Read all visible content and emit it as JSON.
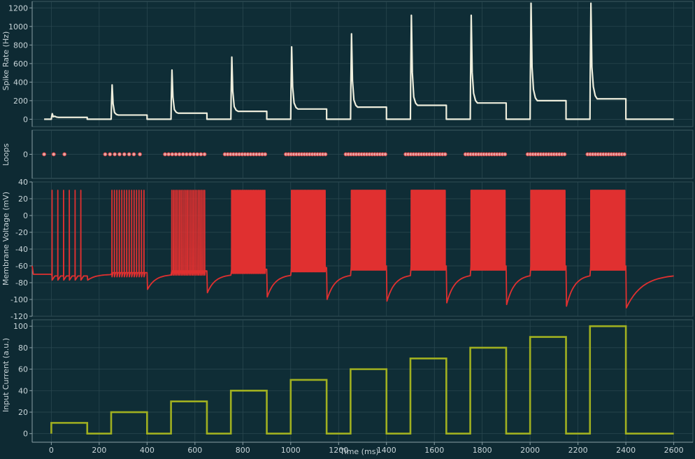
{
  "colors": {
    "background": "#0e2a33",
    "panel": "#0f2d36",
    "grid": "#2c4a52",
    "axis": "#8aa0a6",
    "text": "#c8d4d8",
    "rate": "#eeeedd",
    "loops_fill": "#e8a8a8",
    "loops_stroke": "#d84040",
    "voltage": "#e03030",
    "current": "#a0b020"
  },
  "chart_data": [
    {
      "type": "line",
      "panel": "spike-rate",
      "ylabel": "Spike Rate (Hz)",
      "xlim": [
        -80,
        2680
      ],
      "ylim": [
        -80,
        1270
      ],
      "yticks": [
        0,
        200,
        400,
        600,
        800,
        1000,
        1200
      ],
      "grid": true,
      "pulses": [
        {
          "start": 0,
          "end": 150,
          "peak": 60,
          "steady": 20
        },
        {
          "start": 250,
          "end": 400,
          "peak": 370,
          "steady": 45
        },
        {
          "start": 500,
          "end": 650,
          "peak": 530,
          "steady": 65
        },
        {
          "start": 750,
          "end": 900,
          "peak": 670,
          "steady": 85
        },
        {
          "start": 1000,
          "end": 1150,
          "peak": 780,
          "steady": 110
        },
        {
          "start": 1250,
          "end": 1400,
          "peak": 920,
          "steady": 130
        },
        {
          "start": 1500,
          "end": 1650,
          "peak": 1120,
          "steady": 150
        },
        {
          "start": 1750,
          "end": 1900,
          "peak": 1120,
          "steady": 175
        },
        {
          "start": 2000,
          "end": 2150,
          "peak": 1250,
          "steady": 200
        },
        {
          "start": 2250,
          "end": 2400,
          "peak": 1250,
          "steady": 220
        }
      ],
      "end_x": 2600
    },
    {
      "type": "scatter",
      "panel": "loops",
      "ylabel": "Loops",
      "xlim": [
        -80,
        2680
      ],
      "ylim": [
        -1,
        1
      ],
      "yticks": [
        0
      ],
      "grid": true,
      "points_x": [
        -30,
        10,
        55,
        225,
        245,
        265,
        285,
        305,
        325,
        345,
        370,
        475,
        490,
        505,
        520,
        535,
        550,
        565,
        580,
        595,
        610,
        625,
        640,
        725,
        737,
        749,
        761,
        773,
        785,
        797,
        809,
        821,
        833,
        845,
        857,
        869,
        881,
        893,
        980,
        991,
        1002,
        1013,
        1024,
        1035,
        1046,
        1057,
        1068,
        1079,
        1090,
        1101,
        1112,
        1123,
        1134,
        1145,
        1230,
        1241,
        1252,
        1263,
        1274,
        1285,
        1296,
        1307,
        1318,
        1329,
        1340,
        1351,
        1362,
        1373,
        1384,
        1395,
        1480,
        1491,
        1502,
        1513,
        1524,
        1535,
        1546,
        1557,
        1568,
        1579,
        1590,
        1601,
        1612,
        1623,
        1634,
        1645,
        1730,
        1741,
        1752,
        1763,
        1774,
        1785,
        1796,
        1807,
        1818,
        1829,
        1840,
        1851,
        1862,
        1873,
        1884,
        1895,
        1990,
        2001,
        2012,
        2023,
        2034,
        2045,
        2056,
        2067,
        2078,
        2089,
        2100,
        2111,
        2122,
        2133,
        2144,
        2240,
        2251,
        2262,
        2273,
        2284,
        2295,
        2306,
        2317,
        2328,
        2339,
        2350,
        2361,
        2372,
        2383,
        2394
      ],
      "y": 0
    },
    {
      "type": "line",
      "panel": "membrane-voltage",
      "ylabel": "Membrane Voltage (mV)",
      "xlim": [
        -80,
        2680
      ],
      "ylim": [
        -120,
        40
      ],
      "yticks": [
        -120,
        -100,
        -80,
        -60,
        -40,
        -20,
        0,
        20,
        40
      ],
      "grid": true,
      "spike_peak": 30,
      "rest": -70,
      "pulses": [
        {
          "start": 0,
          "end": 150,
          "spikes": 6,
          "trough": -72,
          "after": -77
        },
        {
          "start": 250,
          "end": 400,
          "spikes": 14,
          "trough": -68,
          "after": -88
        },
        {
          "start": 500,
          "end": 650,
          "spikes": 22,
          "trough": -66,
          "after": -92
        },
        {
          "start": 750,
          "end": 900,
          "spikes": 30,
          "trough": -64,
          "after": -97
        },
        {
          "start": 1000,
          "end": 1150,
          "spikes": 40,
          "trough": -62,
          "after": -100
        },
        {
          "start": 1250,
          "end": 1400,
          "spikes": 60,
          "trough": -60,
          "after": -102
        },
        {
          "start": 1500,
          "end": 1650,
          "spikes": 70,
          "trough": -60,
          "after": -104
        },
        {
          "start": 1750,
          "end": 1900,
          "spikes": 75,
          "trough": -60,
          "after": -106
        },
        {
          "start": 2000,
          "end": 2150,
          "spikes": 80,
          "trough": -60,
          "after": -108
        },
        {
          "start": 2250,
          "end": 2400,
          "spikes": 85,
          "trough": -60,
          "after": -110
        }
      ],
      "end_x": 2600
    },
    {
      "type": "line",
      "panel": "input-current",
      "ylabel": "Input Current (a.u.)",
      "xlabel": "Time (ms)",
      "xlim": [
        -80,
        2680
      ],
      "ylim": [
        -8,
        106
      ],
      "xticks": [
        0,
        200,
        400,
        600,
        800,
        1000,
        1200,
        1400,
        1600,
        1800,
        2000,
        2200,
        2400,
        2600
      ],
      "yticks": [
        0,
        20,
        40,
        60,
        80,
        100
      ],
      "grid": true,
      "steps": [
        {
          "start": 0,
          "end": 150,
          "value": 10
        },
        {
          "start": 250,
          "end": 400,
          "value": 20
        },
        {
          "start": 500,
          "end": 650,
          "value": 30
        },
        {
          "start": 750,
          "end": 900,
          "value": 40
        },
        {
          "start": 1000,
          "end": 1150,
          "value": 50
        },
        {
          "start": 1250,
          "end": 1400,
          "value": 60
        },
        {
          "start": 1500,
          "end": 1650,
          "value": 70
        },
        {
          "start": 1750,
          "end": 1900,
          "value": 80
        },
        {
          "start": 2000,
          "end": 2150,
          "value": 90
        },
        {
          "start": 2250,
          "end": 2400,
          "value": 100
        }
      ],
      "end_x": 2600
    }
  ]
}
